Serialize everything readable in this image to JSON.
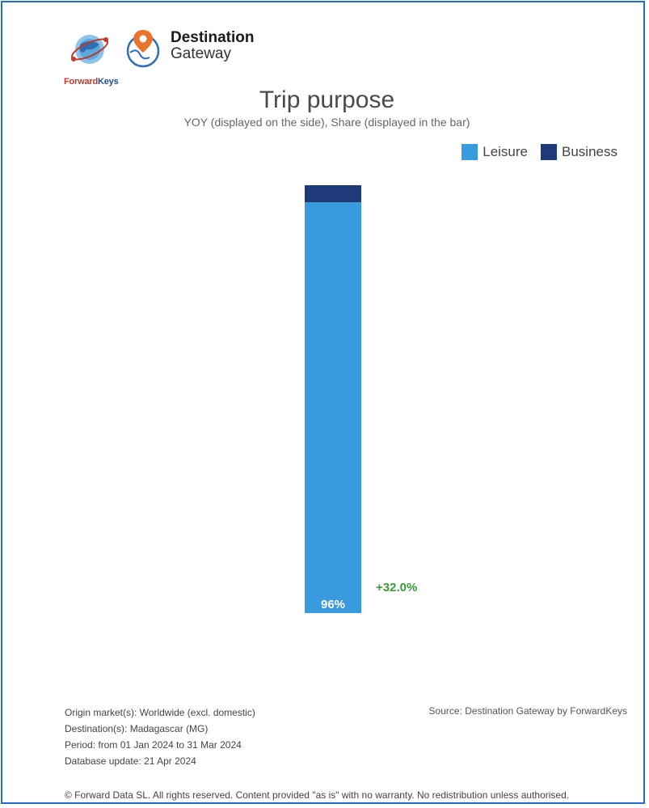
{
  "branding": {
    "forwardkeys_word1": "Forward",
    "forwardkeys_word2": "Keys",
    "product_line1": "Destination",
    "product_line2": "Gateway"
  },
  "chart_data": {
    "type": "bar",
    "title": "Trip purpose",
    "subtitle": "YOY (displayed on the side), Share (displayed in the bar)",
    "stacked": true,
    "legend_position": "top-right",
    "categories": [
      ""
    ],
    "series": [
      {
        "name": "Leisure",
        "values": [
          96
        ],
        "color": "#3a9ade",
        "label": "96%"
      },
      {
        "name": "Business",
        "values": [
          4
        ],
        "color": "#1f3a78"
      }
    ],
    "yoy_label": "+32.0%",
    "yoy_color": "#3a9a3a",
    "ylim": [
      0,
      100
    ],
    "grid": false
  },
  "footer": {
    "source": "Source: Destination Gateway by ForwardKeys",
    "origin": "Origin market(s): Worldwide (excl. domestic)",
    "destination": "Destination(s): Madagascar (MG)",
    "period": "Period: from 01 Jan 2024 to 31 Mar 2024",
    "database_update": "Database update: 21 Apr 2024",
    "copyright": "© Forward Data SL. All rights reserved. Content provided \"as is\" with no warranty. No redistribution unless authorised."
  }
}
